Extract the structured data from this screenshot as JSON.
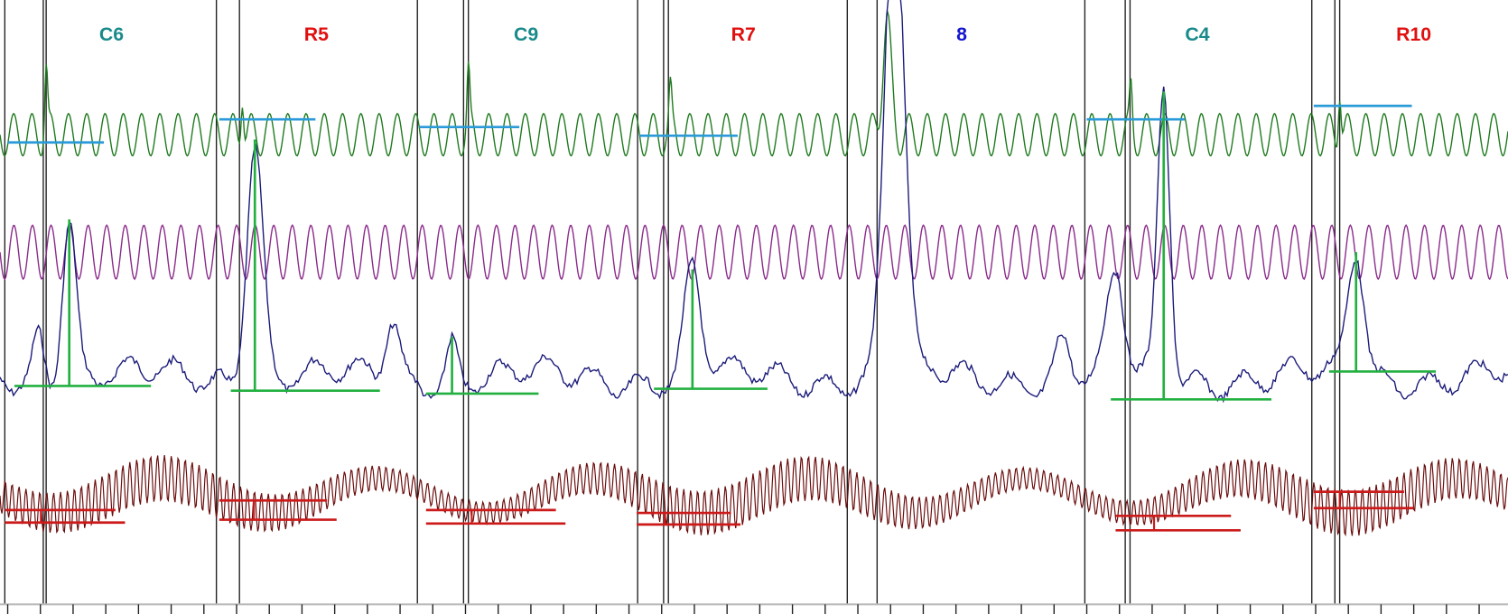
{
  "chart_data": {
    "type": "line",
    "title": "",
    "grid": false,
    "segments": [
      {
        "label": "C6",
        "color": "#1a8a8a"
      },
      {
        "label": "R5",
        "color": "#e01010"
      },
      {
        "label": "C9",
        "color": "#1a8a8a"
      },
      {
        "label": "R7",
        "color": "#e01010"
      },
      {
        "label": "8",
        "color": "#1515d0"
      },
      {
        "label": "C4",
        "color": "#1a8a8a"
      },
      {
        "label": "R10",
        "color": "#e01010"
      }
    ],
    "traces": [
      {
        "color": "#1e7a1e"
      },
      {
        "color": "#8a2a8a"
      },
      {
        "color": "#1a1a7a"
      },
      {
        "color": "#6a0a0a"
      }
    ],
    "annotation_colors": {
      "baseline_blue": "#2a9ad8",
      "peak_green": "#22b040",
      "bracket_red": "#cc1a1a"
    }
  }
}
